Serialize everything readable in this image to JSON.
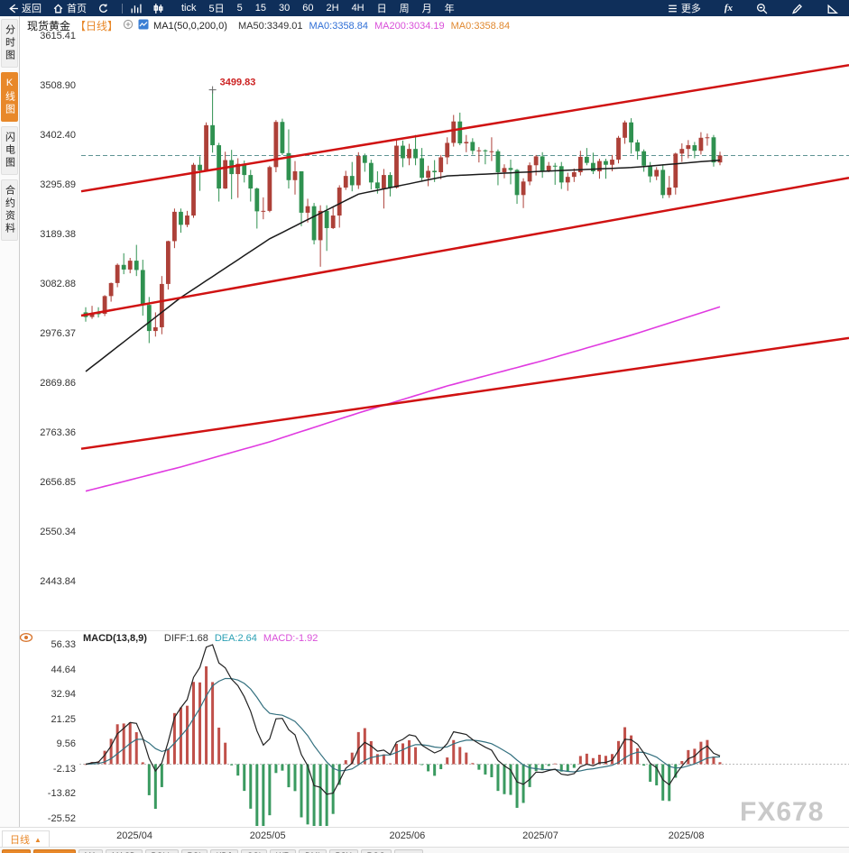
{
  "topbar": {
    "items_left": [
      {
        "name": "back",
        "icon": "back-arrow-icon",
        "label": "返回"
      },
      {
        "name": "home",
        "icon": "home-icon",
        "label": "首页"
      },
      {
        "name": "refresh",
        "icon": "refresh-icon",
        "label": "",
        "sep_after": true
      },
      {
        "name": "bar-chart",
        "icon": "bar-chart-icon",
        "label": ""
      },
      {
        "name": "candle-chart",
        "icon": "candle-chart-icon",
        "label": ""
      }
    ],
    "periods": [
      "tick",
      "5日",
      "5",
      "15",
      "30",
      "60",
      "2H",
      "4H",
      "日",
      "周",
      "月",
      "年"
    ],
    "items_right": [
      {
        "name": "more",
        "icon": "menu-icon",
        "label": "更多"
      },
      {
        "name": "fx",
        "icon": "",
        "label": "fx",
        "italic": true
      },
      {
        "name": "zoom-out",
        "icon": "zoom-out-icon",
        "label": ""
      },
      {
        "name": "draw",
        "icon": "pencil-icon",
        "label": ""
      },
      {
        "name": "shapes",
        "icon": "triangle-icon",
        "label": ""
      }
    ]
  },
  "sidebar": {
    "items": [
      {
        "label": "分时图",
        "active": false
      },
      {
        "label": "K线图",
        "active": true
      },
      {
        "label": "闪电图",
        "active": false
      },
      {
        "label": "合约资料",
        "active": false
      }
    ]
  },
  "header": {
    "symbol": "现货黄金",
    "period_tag": "【日线】",
    "ma_settings": "MA1(50,0,200,0)",
    "ma_values": [
      {
        "text": "MA50:3349.01",
        "color": "#333333"
      },
      {
        "text": "MA0:3358.84",
        "color": "#2f6fd6"
      },
      {
        "text": "MA200:3034.19",
        "color": "#d94fd9"
      },
      {
        "text": "MA0:3358.84",
        "color": "#e0882e"
      }
    ]
  },
  "macd_header": {
    "title": "MACD(13,8,9)",
    "values": [
      {
        "text": "DIFF:1.68",
        "color": "#333333"
      },
      {
        "text": "DEA:2.64",
        "color": "#2aa0b4"
      },
      {
        "text": "MACD:-1.92",
        "color": "#d94fd9"
      }
    ]
  },
  "bottom": {
    "period_tab": "日线",
    "arrow": "▲",
    "indicators": [
      {
        "label": "均线",
        "accent": true
      },
      {
        "label": "VIP指标",
        "accent": true
      },
      {
        "label": "MA"
      },
      {
        "label": "MACD"
      },
      {
        "label": "BOLL"
      },
      {
        "label": "RSI"
      },
      {
        "label": "KDJ"
      },
      {
        "label": "CCI"
      },
      {
        "label": "WR"
      },
      {
        "label": "DMI"
      },
      {
        "label": "PSY"
      },
      {
        "label": "ROC"
      },
      {
        "label": "设置"
      }
    ]
  },
  "watermark": "FX678",
  "chart_data": {
    "type": "candlestick",
    "title": "现货黄金 日线",
    "y_ticks": [
      "3615.41",
      "3508.90",
      "3402.40",
      "3295.89",
      "3189.38",
      "3082.88",
      "2976.37",
      "2869.86",
      "2763.36",
      "2656.85",
      "2550.34",
      "2443.84"
    ],
    "x_labels": [
      {
        "label": "2025/04",
        "index": 6
      },
      {
        "label": "2025/05",
        "index": 27
      },
      {
        "label": "2025/06",
        "index": 49
      },
      {
        "label": "2025/07",
        "index": 70
      },
      {
        "label": "2025/08",
        "index": 93
      }
    ],
    "current_price": 3358.84,
    "annotation": {
      "index": 20,
      "price": 3499.83,
      "text": "3499.83"
    },
    "candles": [
      [
        3022,
        3033,
        3002,
        3012
      ],
      [
        3012,
        3036,
        3008,
        3020
      ],
      [
        3020,
        3033,
        3011,
        3019
      ],
      [
        3019,
        3059,
        3014,
        3057
      ],
      [
        3057,
        3086,
        3045,
        3085
      ],
      [
        3085,
        3127,
        3076,
        3124
      ],
      [
        3124,
        3149,
        3104,
        3114
      ],
      [
        3114,
        3139,
        3106,
        3133
      ],
      [
        3133,
        3167,
        3100,
        3113
      ],
      [
        3113,
        3135,
        3015,
        3038
      ],
      [
        3038,
        3055,
        2956,
        2982
      ],
      [
        2982,
        3022,
        2970,
        2990
      ],
      [
        2990,
        3100,
        2975,
        3083
      ],
      [
        3083,
        3176,
        3071,
        3175
      ],
      [
        3175,
        3245,
        3160,
        3238
      ],
      [
        3238,
        3245,
        3193,
        3210
      ],
      [
        3210,
        3240,
        3205,
        3230
      ],
      [
        3230,
        3343,
        3225,
        3339
      ],
      [
        3339,
        3357,
        3283,
        3327
      ],
      [
        3327,
        3430,
        3324,
        3424
      ],
      [
        3424,
        3499.83,
        3365,
        3381
      ],
      [
        3381,
        3386,
        3260,
        3288
      ],
      [
        3288,
        3367,
        3287,
        3349
      ],
      [
        3349,
        3371,
        3265,
        3319
      ],
      [
        3319,
        3353,
        3268,
        3341
      ],
      [
        3341,
        3348,
        3301,
        3317
      ],
      [
        3317,
        3328,
        3260,
        3288
      ],
      [
        3288,
        3290,
        3202,
        3239
      ],
      [
        3239,
        3269,
        3222,
        3240
      ],
      [
        3240,
        3337,
        3237,
        3334
      ],
      [
        3334,
        3435,
        3323,
        3431
      ],
      [
        3431,
        3438,
        3360,
        3364
      ],
      [
        3364,
        3415,
        3288,
        3306
      ],
      [
        3306,
        3347,
        3275,
        3325
      ],
      [
        3325,
        3325,
        3207,
        3236
      ],
      [
        3236,
        3266,
        3215,
        3250
      ],
      [
        3250,
        3257,
        3168,
        3177
      ],
      [
        3177,
        3252,
        3120,
        3240
      ],
      [
        3240,
        3252,
        3154,
        3203
      ],
      [
        3203,
        3250,
        3201,
        3230
      ],
      [
        3230,
        3295,
        3204,
        3290
      ],
      [
        3290,
        3326,
        3285,
        3315
      ],
      [
        3315,
        3345,
        3282,
        3295
      ],
      [
        3295,
        3366,
        3287,
        3358
      ],
      [
        3358,
        3363,
        3324,
        3343
      ],
      [
        3343,
        3350,
        3286,
        3301
      ],
      [
        3301,
        3325,
        3277,
        3288
      ],
      [
        3288,
        3330,
        3245,
        3317
      ],
      [
        3317,
        3323,
        3271,
        3290
      ],
      [
        3290,
        3392,
        3288,
        3380
      ],
      [
        3380,
        3391,
        3334,
        3353
      ],
      [
        3353,
        3384,
        3338,
        3373
      ],
      [
        3373,
        3403,
        3338,
        3353
      ],
      [
        3353,
        3375,
        3305,
        3311
      ],
      [
        3311,
        3337,
        3293,
        3326
      ],
      [
        3326,
        3349,
        3302,
        3323
      ],
      [
        3323,
        3360,
        3308,
        3355
      ],
      [
        3355,
        3398,
        3340,
        3386
      ],
      [
        3386,
        3446,
        3378,
        3432
      ],
      [
        3432,
        3451,
        3381,
        3385
      ],
      [
        3385,
        3403,
        3366,
        3388
      ],
      [
        3388,
        3396,
        3361,
        3369
      ],
      [
        3369,
        3377,
        3344,
        3370
      ],
      [
        3370,
        3372,
        3340,
        3368
      ],
      [
        3368,
        3398,
        3347,
        3368
      ],
      [
        3368,
        3372,
        3295,
        3323
      ],
      [
        3323,
        3340,
        3310,
        3332
      ],
      [
        3332,
        3350,
        3297,
        3328
      ],
      [
        3328,
        3330,
        3255,
        3274
      ],
      [
        3274,
        3310,
        3246,
        3303
      ],
      [
        3303,
        3344,
        3295,
        3338
      ],
      [
        3338,
        3360,
        3316,
        3357
      ],
      [
        3357,
        3366,
        3311,
        3326
      ],
      [
        3326,
        3345,
        3323,
        3337
      ],
      [
        3337,
        3343,
        3296,
        3336
      ],
      [
        3336,
        3345,
        3287,
        3301
      ],
      [
        3301,
        3322,
        3283,
        3313
      ],
      [
        3313,
        3331,
        3302,
        3323
      ],
      [
        3323,
        3369,
        3316,
        3356
      ],
      [
        3356,
        3375,
        3338,
        3343
      ],
      [
        3343,
        3365,
        3319,
        3325
      ],
      [
        3325,
        3352,
        3309,
        3347
      ],
      [
        3347,
        3352,
        3309,
        3339
      ],
      [
        3339,
        3360,
        3325,
        3350
      ],
      [
        3350,
        3401,
        3342,
        3397
      ],
      [
        3397,
        3434,
        3384,
        3430
      ],
      [
        3430,
        3439,
        3363,
        3387
      ],
      [
        3387,
        3393,
        3350,
        3368
      ],
      [
        3368,
        3372,
        3324,
        3337
      ],
      [
        3337,
        3345,
        3301,
        3314
      ],
      [
        3314,
        3334,
        3306,
        3328
      ],
      [
        3328,
        3340,
        3267,
        3274
      ],
      [
        3274,
        3315,
        3268,
        3290
      ],
      [
        3290,
        3365,
        3275,
        3363
      ],
      [
        3363,
        3385,
        3345,
        3373
      ],
      [
        3373,
        3392,
        3353,
        3381
      ],
      [
        3381,
        3388,
        3353,
        3369
      ],
      [
        3369,
        3409,
        3361,
        3397
      ],
      [
        3397,
        3406,
        3380,
        3398
      ],
      [
        3398,
        3403,
        3335,
        3344
      ],
      [
        3344,
        3367,
        3338,
        3358.84
      ]
    ],
    "ma50_points": [
      [
        0,
        2895
      ],
      [
        15,
        3054
      ],
      [
        29,
        3180
      ],
      [
        43,
        3276
      ],
      [
        57,
        3315
      ],
      [
        72,
        3325
      ],
      [
        86,
        3333
      ],
      [
        100,
        3349
      ]
    ],
    "ma200_points": [
      [
        0,
        2638
      ],
      [
        15,
        2690
      ],
      [
        29,
        2744
      ],
      [
        43,
        2806
      ],
      [
        57,
        2864
      ],
      [
        72,
        2918
      ],
      [
        86,
        2973
      ],
      [
        100,
        3034
      ]
    ],
    "channel_lines": [
      {
        "x1": 90,
        "p1": 3282,
        "x2": 941,
        "p2": 3553
      },
      {
        "x1": 90,
        "p1": 3015,
        "x2": 941,
        "p2": 3311
      },
      {
        "x1": 90,
        "p1": 2729,
        "x2": 941,
        "p2": 2967
      }
    ],
    "macd": {
      "params": "(13,8,9)",
      "diff": 1.68,
      "dea": 2.64,
      "macd": -1.92,
      "y_ticks": [
        "56.33",
        "44.64",
        "32.94",
        "21.25",
        "9.56",
        "-2.13",
        "-13.82",
        "-25.52"
      ]
    },
    "colors": {
      "up": "#ad4038",
      "down": "#2f9150",
      "ma50": "#1a1a1a",
      "ma200": "#e03ae0",
      "channel": "#d01212",
      "current_dash": "#5f9494",
      "macd_up": "#c0504a",
      "macd_down": "#3a9a60",
      "diff_line": "#222222",
      "dea_line": "#33707f"
    }
  }
}
